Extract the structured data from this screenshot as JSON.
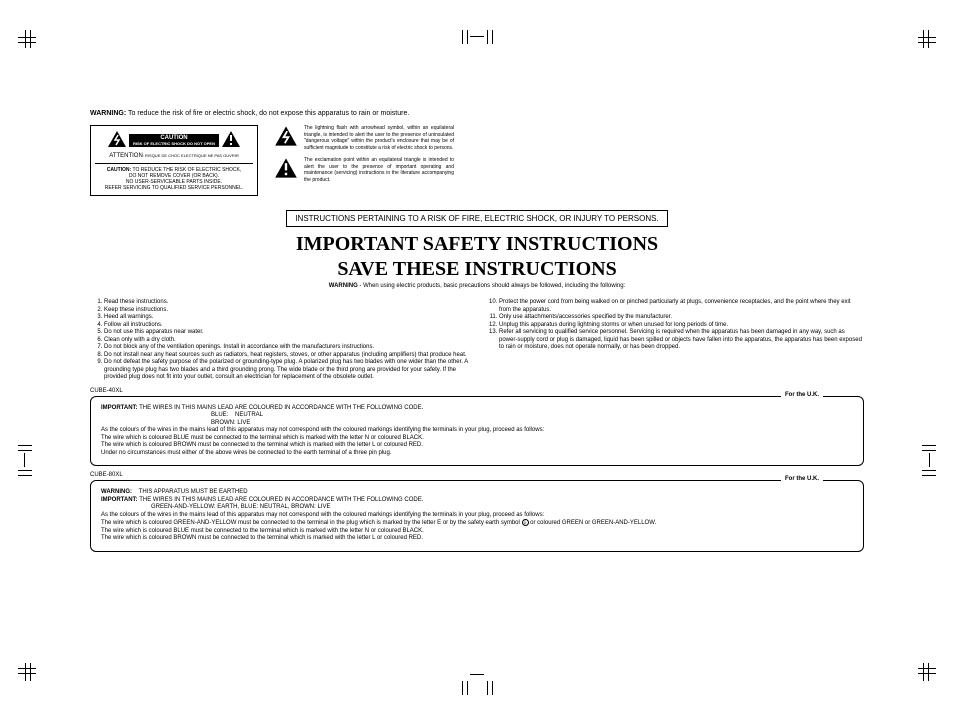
{
  "top_warning_label": "WARNING:",
  "top_warning_text": "To reduce the risk of fire or electric shock, do not expose this apparatus to rain or moisture.",
  "caution_box": {
    "title": "CAUTION",
    "risk_en": "RISK OF ELECTRIC SHOCK DO NOT OPEN",
    "attention": "ATTENTION",
    "risk_fr": ": RISQUE DE CHOC ELECTRIQUE NE PAS OUVRIR",
    "body_caution_label": "CAUTION:",
    "body1": "TO REDUCE THE RISK OF ELECTRIC SHOCK,",
    "body2": "DO NOT REMOVE COVER (OR BACK).",
    "body3": "NO USER-SERVICEABLE PARTS INSIDE.",
    "body4": "REFER SERVICING TO QUALIFIED SERVICE PERSONNEL."
  },
  "symbol_notes": {
    "bolt": "The lightning flash with arrowhead symbol, within an equilateral triangle, is intended to alert the user to the presence of uninsulated \"dangerous voltage\" within the product's enclosure that may be of sufficient magnitude to constitute a risk of electric shock to persons.",
    "excl": "The exclamation point within an equilateral triangle is intended to alert the user to the presence of important operating and maintenance (servicing) instructions in the literature accompanying the product."
  },
  "banner": "INSTRUCTIONS PERTAINING TO A RISK OF FIRE, ELECTRIC SHOCK, OR INJURY TO PERSONS.",
  "heading1": "IMPORTANT SAFETY INSTRUCTIONS",
  "heading2": "SAVE THESE INSTRUCTIONS",
  "sub_warning_label": "WARNING",
  "sub_warning_text": " - When using electric products, basic precautions should always be followed, including the following:",
  "instructions_left": [
    "Read these instructions.",
    "Keep these instructions.",
    "Heed all warnings.",
    "Follow all instructions.",
    "Do not use this apparatus near water.",
    "Clean only with a dry cloth.",
    "Do not block any of the ventilation openings. Install in accordance with the manufacturers instructions.",
    "Do not install near any heat sources such as radiators, heat registers, stoves, or other apparatus (including amplifiers) that produce heat.",
    "Do not defeat the safety purpose of the polarized or grounding-type plug. A polarized plug has two blades with one wider than the other. A grounding type plug has two blades and a third grounding prong. The wide blade or the third prong are provided for your safety. If the provided plug does not fit into your outlet, consult an electrician for replacement of the obsolete outlet."
  ],
  "instructions_right": [
    "Protect the power cord from being walked on or pinched particularly at plugs, convenience receptacles, and the point where they exit from the apparatus.",
    "Only use attachments/accessories specified by the manufacturer.",
    "Unplug this apparatus during lightning storms or when unused for long periods of time.",
    "Refer all servicing to qualified service personnel. Servicing is required when the apparatus has been damaged in any way, such as power-supply cord or plug is damaged, liquid has been spilled or objects have fallen into the apparatus, the apparatus has been exposed to rain or moisture, does not operate normally, or has been dropped."
  ],
  "model1": "CUBE-40XL",
  "model2": "CUBE-80XL",
  "uk_tag": "For the U.K.",
  "uk1": {
    "important_label": "IMPORTANT:",
    "important_text": "THE WIRES IN THIS MAINS LEAD ARE COLOURED IN ACCORDANCE WITH THE FOLLOWING CODE.",
    "colours1": "BLUE:",
    "colours1b": "NEUTRAL",
    "colours2": "BROWN:",
    "colours2b": "LIVE",
    "para": "As the colours of the wires in the mains lead of this apparatus may not correspond with the coloured markings identifying the terminals in your plug, proceed as follows:",
    "line1": "The wire which is coloured BLUE must be connected to the terminal which is marked with the letter N or coloured BLACK.",
    "line2": "The wire which is coloured BROWN must be connected to the terminal which is marked with the letter L or coloured RED.",
    "line3": "Under no circumstances must either of the above wires be connected to the earth terminal of a three pin plug."
  },
  "uk2": {
    "warning_label": "WARNING:",
    "warning_text": "THIS APPARATUS MUST BE EARTHED",
    "important_label": "IMPORTANT:",
    "important_text": "THE WIRES IN THIS MAINS LEAD ARE COLOURED IN ACCORDANCE WITH THE FOLLOWING CODE.",
    "colours": "GREEN-AND-YELLOW: EARTH, BLUE: NEUTRAL, BROWN: LIVE",
    "para": "As the colours of the wires in the mains lead of this apparatus may not correspond with the coloured markings identifying the terminals in your plug, proceed as follows:",
    "line1a": "The wire which is coloured GREEN-AND-YELLOW must be connected to the terminal in the plug which is marked by the letter E or by the safety earth symbol ",
    "line1b": " or coloured GREEN or GREEN-AND-YELLOW.",
    "line2": "The wire which is coloured BLUE must be connected to the terminal which is marked with the letter N or coloured BLACK.",
    "line3": "The wire which is coloured BROWN must be connected to the terminal which is marked with the letter L or coloured RED."
  }
}
